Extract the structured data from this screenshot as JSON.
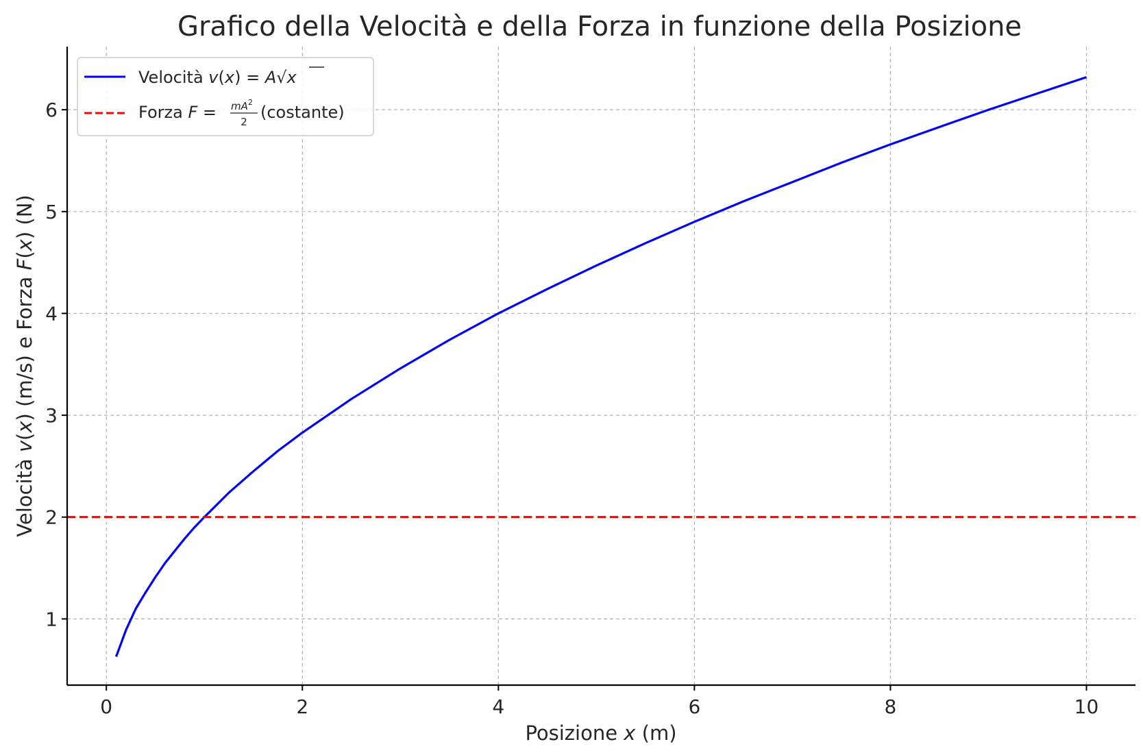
{
  "chart_data": {
    "type": "line",
    "title": "Grafico della Velocità e della Forza in funzione della Posizione",
    "xlabel": {
      "pre": "Posizione ",
      "var": "x",
      "post": " (m)"
    },
    "ylabel": {
      "p1": "Velocità ",
      "v1": "v",
      "p2": "(",
      "v2": "x",
      "p3": ") (m/s) e Forza ",
      "v3": "F",
      "p4": "(",
      "v4": "x",
      "p5": ") (N)"
    },
    "xlim": [
      -0.4,
      10.5
    ],
    "ylim": [
      0.35,
      6.62
    ],
    "xticks": [
      "0",
      "2",
      "4",
      "6",
      "8",
      "10"
    ],
    "yticks": [
      "1",
      "2",
      "3",
      "4",
      "5",
      "6"
    ],
    "grid": true,
    "legend_position": "top-left",
    "colors": {
      "velocity": "#0000ff",
      "force": "#ff0000"
    },
    "series": [
      {
        "key": "velocity",
        "style": "solid",
        "x": [
          0.1,
          0.2,
          0.3,
          0.4,
          0.5,
          0.6,
          0.7,
          0.8,
          0.9,
          1.0,
          1.25,
          1.5,
          1.75,
          2.0,
          2.5,
          3.0,
          3.5,
          4.0,
          4.5,
          5.0,
          5.5,
          6.0,
          6.5,
          7.0,
          7.5,
          8.0,
          8.5,
          9.0,
          9.5,
          10.0
        ],
        "y": [
          0.63,
          0.89,
          1.1,
          1.26,
          1.41,
          1.55,
          1.67,
          1.79,
          1.9,
          2.0,
          2.24,
          2.45,
          2.65,
          2.83,
          3.16,
          3.46,
          3.74,
          4.0,
          4.24,
          4.47,
          4.69,
          4.9,
          5.1,
          5.29,
          5.48,
          5.66,
          5.83,
          6.0,
          6.16,
          6.32
        ]
      },
      {
        "key": "force",
        "style": "dashed",
        "x": [
          -0.4,
          10.5
        ],
        "y": [
          2.0,
          2.0
        ]
      }
    ],
    "legend": [
      {
        "key": "velocity",
        "label": "Velocità ",
        "math_var": "v",
        "math_open": "(",
        "math_arg": "x",
        "math_close": ")",
        "math_eq": " = ",
        "math_coef": "A",
        "math_root": "√",
        "math_rad": "x"
      },
      {
        "key": "force",
        "label": "Forza ",
        "math_var": "F",
        "math_eq": " = ",
        "frac_num_m": "m",
        "frac_num_a": "A",
        "frac_num_exp": "2",
        "frac_den": "2",
        "suffix": " (costante)"
      }
    ]
  }
}
